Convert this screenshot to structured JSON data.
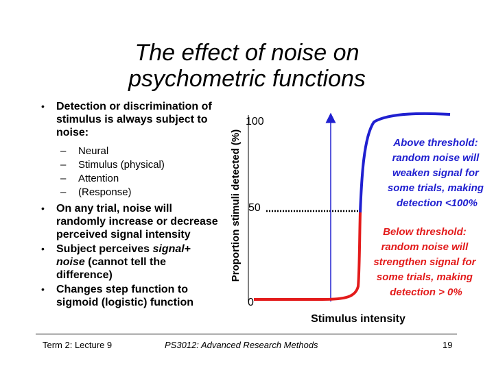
{
  "slide": {
    "title_line1": "The effect of noise on",
    "title_line2": "psychometric functions"
  },
  "bullets": [
    {
      "text": "Detection or discrimination of stimulus is always subject to noise:",
      "subitems": [
        "Neural",
        "Stimulus (physical)",
        "Attention",
        "(Response)"
      ]
    },
    {
      "text": "On any trial, noise will randomly increase or decrease perceived signal intensity"
    },
    {
      "parts": [
        "Subject perceives ",
        "signal",
        "+ ",
        "noise",
        " (cannot tell the difference)"
      ]
    },
    {
      "text": "Changes step function to sigmoid (logistic) function"
    }
  ],
  "chart_data": {
    "type": "line",
    "ylabel": "Proportion stimuli detected (%)",
    "xlabel": "Stimulus intensity",
    "y_ticks": [
      "100",
      "50",
      "0"
    ],
    "ylim": [
      0,
      100
    ],
    "series": [
      {
        "color": "#e31b1b",
        "segment": "below threshold",
        "y": [
          0,
          50
        ]
      },
      {
        "color": "#2020d0",
        "segment": "above threshold",
        "y": [
          50,
          100
        ]
      }
    ],
    "step_function_color": "#2020d0",
    "threshold_reference_line": 50,
    "annotations": [
      {
        "text": "Above threshold: random noise will weaken signal for some trials, making detection <100%",
        "color": "#2020d0"
      },
      {
        "text": "Below threshold: random noise will strengthen signal for some trials, making detection > 0%",
        "color": "#e31b1b"
      }
    ]
  },
  "footer": {
    "left": "Term 2: Lecture 9",
    "center": "PS3012: Advanced Research Methods",
    "page": "19"
  }
}
